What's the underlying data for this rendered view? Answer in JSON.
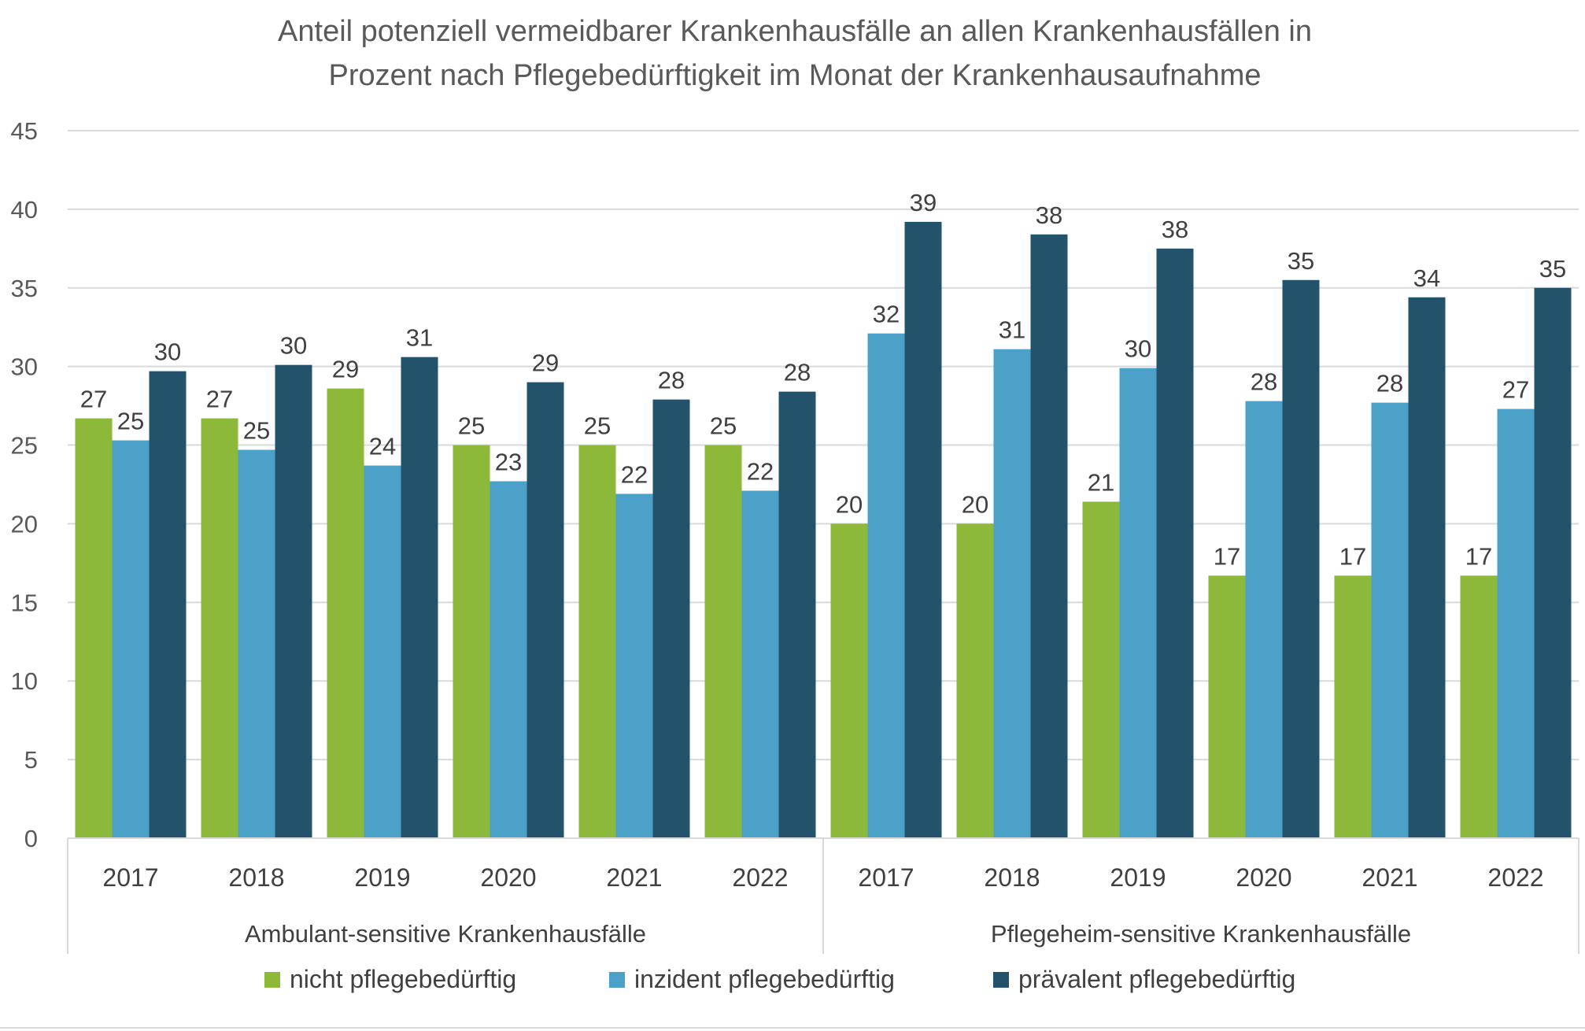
{
  "chart_data": {
    "type": "bar",
    "title": "Anteil potenziell vermeidbarer Krankenhausfälle an allen Krankenhausfällen in Prozent nach Pflegebedürftigkeit im Monat der Krankenhausaufnahme",
    "title_lines": [
      "Anteil potenziell vermeidbarer Krankenhausfälle an allen Krankenhausfällen in",
      "Prozent nach Pflegebedürftigkeit im Monat der Krankenhausaufnahme"
    ],
    "xlabel": "",
    "ylabel": "",
    "ylim": [
      0,
      45
    ],
    "yticks": [
      0,
      5,
      10,
      15,
      20,
      25,
      30,
      35,
      40,
      45
    ],
    "grid": true,
    "legend_position": "bottom",
    "groups": [
      {
        "label": "Ambulant-sensitive Krankenhausfälle",
        "categories": [
          "2017",
          "2018",
          "2019",
          "2020",
          "2021",
          "2022"
        ]
      },
      {
        "label": "Pflegeheim-sensitive Krankenhausfälle",
        "categories": [
          "2017",
          "2018",
          "2019",
          "2020",
          "2021",
          "2022"
        ]
      }
    ],
    "series": [
      {
        "name": "nicht pflegebedürftig",
        "color": "#8DB93A",
        "values": [
          26.7,
          26.7,
          28.6,
          25.0,
          25.0,
          25.0,
          20.0,
          20.0,
          21.4,
          16.7,
          16.7,
          16.7
        ],
        "labels": [
          "27",
          "27",
          "29",
          "25",
          "25",
          "25",
          "20",
          "20",
          "21",
          "17",
          "17",
          "17"
        ]
      },
      {
        "name": "inzident pflegebedürftig",
        "color": "#4BA1C8",
        "values": [
          25.3,
          24.7,
          23.7,
          22.7,
          21.9,
          22.1,
          32.1,
          31.1,
          29.9,
          27.8,
          27.7,
          27.3
        ],
        "labels": [
          "25",
          "25",
          "24",
          "23",
          "22",
          "22",
          "32",
          "31",
          "30",
          "28",
          "28",
          "27"
        ]
      },
      {
        "name": "prävalent pflegebedürftig",
        "color": "#23536A",
        "values": [
          29.7,
          30.1,
          30.6,
          29.0,
          27.9,
          28.4,
          39.2,
          38.4,
          37.5,
          35.5,
          34.4,
          35.0
        ],
        "labels": [
          "30",
          "30",
          "31",
          "29",
          "28",
          "28",
          "39",
          "38",
          "38",
          "35",
          "34",
          "35"
        ]
      }
    ]
  }
}
